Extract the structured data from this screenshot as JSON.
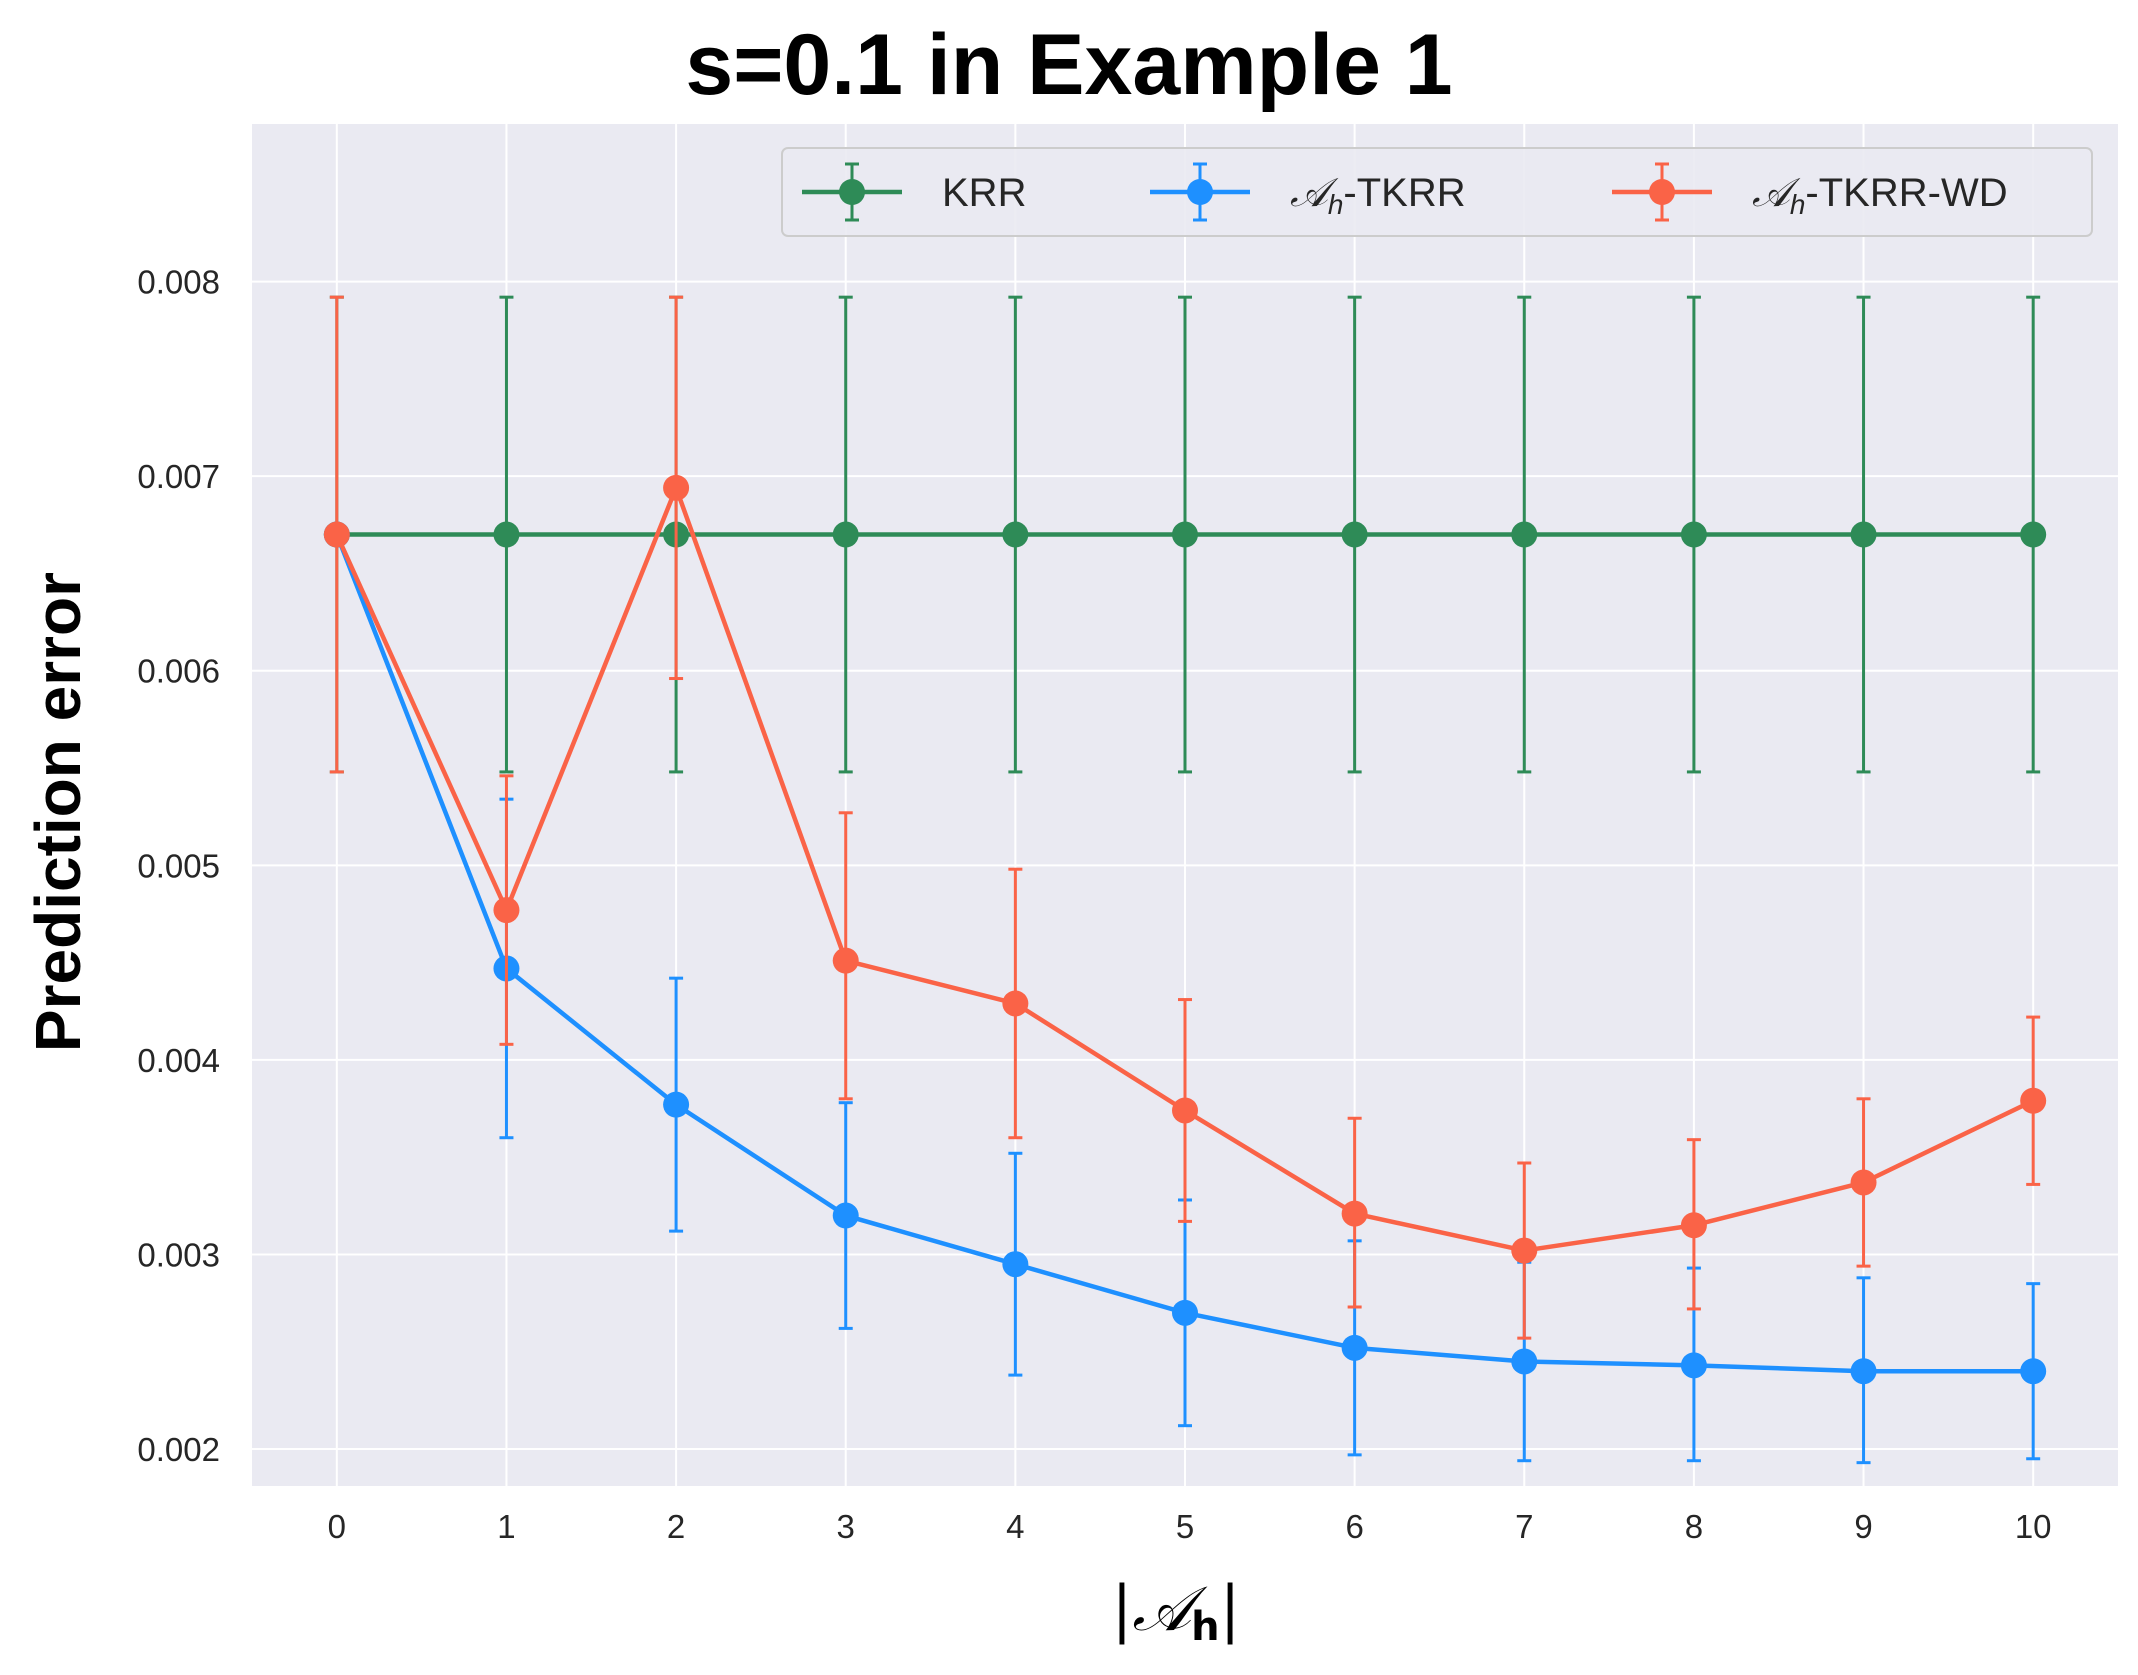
{
  "chart_data": {
    "type": "line",
    "title": "s=0.1 in Example 1",
    "ylabel": "Prediction error",
    "xlabel": "|𝒜h|",
    "xlabel_parts": {
      "script": "𝒜",
      "sub": "h"
    },
    "x": [
      0,
      1,
      2,
      3,
      4,
      5,
      6,
      7,
      8,
      9,
      10
    ],
    "xticks": [
      "0",
      "1",
      "2",
      "3",
      "4",
      "5",
      "6",
      "7",
      "8",
      "9",
      "10"
    ],
    "yticks": [
      "0.002",
      "0.003",
      "0.004",
      "0.005",
      "0.006",
      "0.007",
      "0.008"
    ],
    "ytick_values": [
      0.002,
      0.003,
      0.004,
      0.005,
      0.006,
      0.007,
      0.008
    ],
    "xlim": [
      -0.5,
      10.5
    ],
    "ylim": [
      0.00181,
      0.00881
    ],
    "grid": true,
    "background": "#EAEAF2",
    "legend_placement": "top-right",
    "series": [
      {
        "name": "KRR",
        "color": "#2E8B57",
        "values": [
          0.0067,
          0.0067,
          0.0067,
          0.0067,
          0.0067,
          0.0067,
          0.0067,
          0.0067,
          0.0067,
          0.0067,
          0.0067
        ],
        "err_low": [
          0.00548,
          0.00548,
          0.00548,
          0.00548,
          0.00548,
          0.00548,
          0.00548,
          0.00548,
          0.00548,
          0.00548,
          0.00548
        ],
        "err_high": [
          0.00792,
          0.00792,
          0.00792,
          0.00792,
          0.00792,
          0.00792,
          0.00792,
          0.00792,
          0.00792,
          0.00792,
          0.00792
        ]
      },
      {
        "name": "𝒜h-TKRR",
        "legend_parts": {
          "script": "𝒜",
          "sub": "h",
          "rest": "-TKRR"
        },
        "color": "#1E90FF",
        "values": [
          0.0067,
          0.00447,
          0.00377,
          0.0032,
          0.00295,
          0.0027,
          0.00252,
          0.00245,
          0.00243,
          0.0024,
          0.0024
        ],
        "err_low": [
          0.0067,
          0.0036,
          0.00312,
          0.00262,
          0.00238,
          0.00212,
          0.00197,
          0.00194,
          0.00194,
          0.00193,
          0.00195
        ],
        "err_high": [
          0.0067,
          0.00534,
          0.00442,
          0.00378,
          0.00352,
          0.00328,
          0.00307,
          0.00296,
          0.00293,
          0.00288,
          0.00285
        ]
      },
      {
        "name": "𝒜h-TKRR-WD",
        "legend_parts": {
          "script": "𝒜",
          "sub": "h",
          "rest": "-TKRR-WD"
        },
        "color": "#FA6347",
        "values": [
          0.0067,
          0.00477,
          0.00694,
          0.00451,
          0.00429,
          0.00374,
          0.00321,
          0.00302,
          0.00315,
          0.00337,
          0.00379
        ],
        "err_low": [
          0.00548,
          0.00408,
          0.00596,
          0.0038,
          0.0036,
          0.00317,
          0.00273,
          0.00257,
          0.00272,
          0.00294,
          0.00336
        ],
        "err_high": [
          0.00792,
          0.00546,
          0.00792,
          0.00527,
          0.00498,
          0.00431,
          0.0037,
          0.00347,
          0.00359,
          0.0038,
          0.00422
        ]
      }
    ]
  }
}
